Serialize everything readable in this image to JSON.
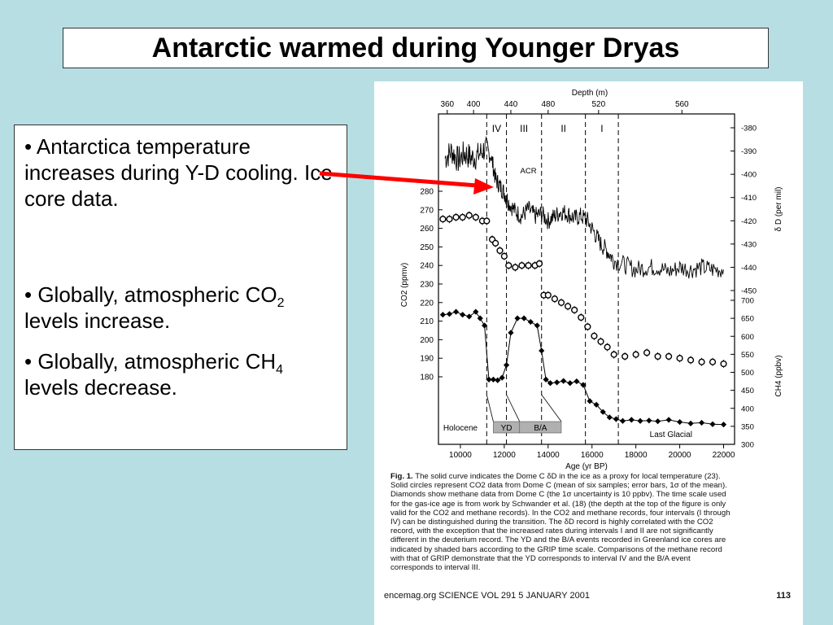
{
  "slide": {
    "title": "Antarctic warmed during Younger Dryas",
    "bullets": [
      {
        "text": "• Antarctica temperature increases during Y-D cooling.  Ice core data."
      },
      {
        "pre": "•  Globally, atmospheric CO",
        "sub": "2",
        "post": " levels increase."
      },
      {
        "pre": "•  Globally, atmospheric CH",
        "sub": "4",
        "post": " levels decrease."
      }
    ],
    "arrow_color": "#ff0000"
  },
  "chart_data": {
    "type": "line",
    "xlabel": "Age (yr BP)",
    "x_ticks": [
      "10000",
      "12000",
      "14000",
      "16000",
      "18000",
      "20000",
      "22000"
    ],
    "xlim": [
      9000,
      22500
    ],
    "top_axis": {
      "label": "Depth (m)",
      "ticks": [
        {
          "label": "360",
          "age": 9400
        },
        {
          "label": "400",
          "age": 10600
        },
        {
          "label": "440",
          "age": 12300
        },
        {
          "label": "480",
          "age": 14000
        },
        {
          "label": "520",
          "age": 16300
        },
        {
          "label": "560",
          "age": 20100
        }
      ]
    },
    "left_axis": {
      "label": "CO2 (ppmv)",
      "ticks": [
        "180",
        "190",
        "200",
        "210",
        "220",
        "230",
        "240",
        "250",
        "260",
        "270",
        "280"
      ],
      "range": [
        180,
        280
      ]
    },
    "right_axis_dD": {
      "label": "δ D (per mil)",
      "ticks": [
        "-380",
        "-390",
        "-400",
        "-410",
        "-420",
        "-430",
        "-440",
        "-450"
      ],
      "range": [
        -380,
        -450
      ]
    },
    "right_axis_CH4": {
      "label": "CH4 (ppbv)",
      "ticks": [
        "700",
        "650",
        "600",
        "550",
        "500",
        "450",
        "400",
        "350",
        "300"
      ],
      "range": [
        300,
        700
      ]
    },
    "intervals": [
      {
        "label": "IV",
        "from": 11200,
        "to": 12100
      },
      {
        "label": "III",
        "from": 12100,
        "to": 13700
      },
      {
        "label": "II",
        "from": 13700,
        "to": 15700
      },
      {
        "label": "I",
        "from": 15700,
        "to": 17200
      }
    ],
    "boundaries": [
      11200,
      12100,
      13700,
      15700,
      17200
    ],
    "annotations": {
      "acr": "ACR",
      "holocene": "Holocene",
      "last_glacial": "Last Glacial",
      "yd": "YD",
      "ba": "B/A"
    },
    "shaded_bars": [
      {
        "label": "YD",
        "from": 11500,
        "to": 12700
      },
      {
        "label": "B/A",
        "from": 12700,
        "to": 14600
      }
    ],
    "series": [
      {
        "key": "dD",
        "style": "line",
        "x": [
          9300,
          9600,
          9900,
          10200,
          10500,
          10800,
          11100,
          11400,
          11600,
          11800,
          12000,
          12200,
          12500,
          12800,
          13100,
          13400,
          13700,
          14000,
          14300,
          14600,
          14900,
          15200,
          15500,
          15800,
          16100,
          16400,
          16700,
          17000,
          17500,
          18000,
          18500,
          19000,
          19500,
          20000,
          20500,
          21000,
          21500,
          22000
        ],
        "values": [
          -393,
          -390,
          -394,
          -391,
          -393,
          -392,
          -389,
          -392,
          -402,
          -405,
          -408,
          -412,
          -416,
          -418,
          -415,
          -418,
          -417,
          -420,
          -418,
          -416,
          -417,
          -419,
          -418,
          -420,
          -425,
          -430,
          -433,
          -437,
          -439,
          -441,
          -440,
          -440,
          -442,
          -440,
          -441,
          -440,
          -441,
          -441
        ]
      },
      {
        "key": "CO2",
        "style": "circles",
        "x": [
          9200,
          9500,
          9800,
          10100,
          10400,
          10700,
          11000,
          11200,
          11450,
          11600,
          11800,
          12000,
          12200,
          12500,
          12800,
          13100,
          13400,
          13600,
          13800,
          14000,
          14300,
          14600,
          14900,
          15200,
          15500,
          15800,
          16100,
          16400,
          16700,
          17000,
          17500,
          18000,
          18500,
          19000,
          19500,
          20000,
          20500,
          21000,
          21500,
          22000
        ],
        "values": [
          265,
          265,
          266,
          266,
          267,
          266,
          264,
          264,
          254,
          252,
          248,
          245,
          240,
          239,
          240,
          240,
          240,
          241,
          224,
          224,
          222,
          220,
          218,
          216,
          212,
          207,
          202,
          199,
          196,
          192,
          191,
          192,
          193,
          191,
          191,
          190,
          189,
          188,
          188,
          187
        ]
      },
      {
        "key": "CH4",
        "style": "diamonds",
        "x": [
          9200,
          9500,
          9800,
          10100,
          10400,
          10700,
          10900,
          11100,
          11300,
          11500,
          11700,
          11900,
          12100,
          12300,
          12600,
          12900,
          13200,
          13500,
          13700,
          13900,
          14100,
          14400,
          14700,
          15000,
          15300,
          15600,
          15900,
          16200,
          16500,
          16800,
          17100,
          17400,
          17800,
          18200,
          18600,
          19000,
          19500,
          20000,
          20500,
          21000,
          21500,
          22000
        ],
        "values": [
          660,
          662,
          668,
          660,
          655,
          668,
          650,
          630,
          480,
          480,
          478,
          485,
          520,
          610,
          650,
          650,
          640,
          630,
          560,
          480,
          470,
          472,
          476,
          470,
          475,
          465,
          420,
          410,
          390,
          375,
          370,
          365,
          368,
          365,
          366,
          364,
          368,
          362,
          358,
          360,
          356,
          355
        ]
      }
    ]
  },
  "caption": {
    "fig_label": "Fig. 1.",
    "lines": [
      "The solid curve indicates the Dome C δD in the ice as a proxy for local temperature (23).",
      "Solid circles represent CO2 data from Dome C (mean of six samples; error bars, 1σ of the mean).",
      "Diamonds show methane data from Dome C (the 1σ uncertainty is 10 ppbv). The time scale used",
      "for the gas-ice age is from work by Schwander et al. (18) (the depth at the top of the figure is only",
      "valid for the CO2 and methane records). In the CO2 and methane records, four intervals (I through",
      "IV) can be distinguished during the transition. The δD record is highly correlated with the CO2",
      "record, with the exception that the increased rates during intervals I and II are not significantly",
      "different in the deuterium record. The YD and the B/A events recorded in Greenland ice cores are",
      "indicated by shaded bars according to the GRIP time scale. Comparisons of the methane record",
      "with that of GRIP demonstrate that the YD corresponds to interval IV and the B/A event",
      "corresponds to interval III."
    ]
  },
  "footer": {
    "journal": "encemag.org   SCIENCE   VOL 291   5 JANUARY 2001",
    "page": "113"
  }
}
